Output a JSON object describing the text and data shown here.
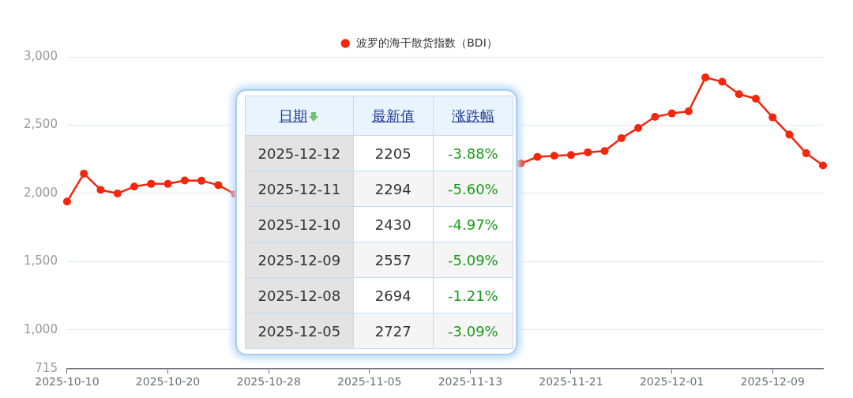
{
  "chart_data": {
    "type": "line",
    "legend": "top",
    "grid": "y",
    "marker": "circle",
    "categories": [
      "2025-10-10",
      null,
      null,
      null,
      null,
      null,
      "2025-10-20",
      null,
      null,
      null,
      null,
      null,
      "2025-10-28",
      null,
      null,
      null,
      null,
      null,
      "2025-11-05",
      null,
      null,
      null,
      null,
      null,
      "2025-11-13",
      null,
      null,
      null,
      null,
      null,
      "2025-11-21",
      null,
      null,
      null,
      null,
      null,
      "2025-12-01",
      null,
      null,
      null,
      null,
      null,
      "2025-12-09",
      null,
      null,
      null
    ],
    "series": [
      {
        "name": "波罗的海干散货指数（BDI）",
        "color": "#f5260c",
        "values": [
          1940,
          2145,
          2026,
          2000,
          2050,
          2070,
          2070,
          2095,
          2093,
          2061,
          1995,
          null,
          null,
          null,
          null,
          null,
          null,
          null,
          null,
          null,
          null,
          null,
          null,
          null,
          null,
          null,
          null,
          2219,
          2267,
          2276,
          2281,
          2301,
          2311,
          2404,
          2480,
          2561,
          2586,
          2601,
          2849,
          2818,
          2727,
          2694,
          2557,
          2430,
          2294,
          2205
        ]
      }
    ],
    "ylim": [
      715,
      3000
    ],
    "yticks": [
      715,
      {
        "value": 1000,
        "label": "1,000"
      },
      {
        "value": 1500,
        "label": "1,500"
      },
      {
        "value": 2000,
        "label": "2,000"
      },
      {
        "value": 2500,
        "label": "2,500"
      },
      {
        "value": 3000,
        "label": "3,000"
      }
    ],
    "annotations": [
      "日期",
      "最新值",
      "涨跌幅",
      "2025-12-12",
      "2205",
      "-3.88%",
      "2025-12-11",
      "2294",
      "-5.60%",
      "2025-12-10",
      "2430",
      "-4.97%",
      "2025-12-09",
      "2557",
      "-5.09%",
      "2025-12-08",
      "2694",
      "-1.21%",
      "2025-12-05",
      "2727",
      "-3.09%"
    ]
  }
}
